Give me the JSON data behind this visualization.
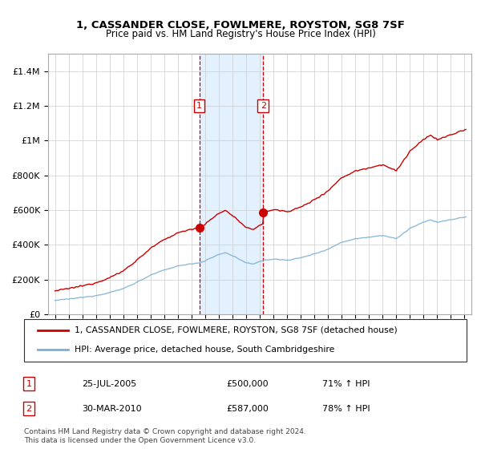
{
  "title": "1, CASSANDER CLOSE, FOWLMERE, ROYSTON, SG8 7SF",
  "subtitle": "Price paid vs. HM Land Registry's House Price Index (HPI)",
  "legend_line1": "1, CASSANDER CLOSE, FOWLMERE, ROYSTON, SG8 7SF (detached house)",
  "legend_line2": "HPI: Average price, detached house, South Cambridgeshire",
  "sale1_label": "1",
  "sale2_label": "2",
  "sale1_date": "25-JUL-2005",
  "sale1_price": 500000,
  "sale1_hpi_text": "71% ↑ HPI",
  "sale2_date": "30-MAR-2010",
  "sale2_price": 587000,
  "sale2_hpi_text": "78% ↑ HPI",
  "footnote_line1": "Contains HM Land Registry data © Crown copyright and database right 2024.",
  "footnote_line2": "This data is licensed under the Open Government Licence v3.0.",
  "red_color": "#cc0000",
  "blue_color": "#7bafd4",
  "shade_color": "#ddeeff",
  "ylim_min": 0,
  "ylim_max": 1500000,
  "sale1_x": 2005.57,
  "sale2_x": 2010.25,
  "xlim_min": 1994.5,
  "xlim_max": 2025.5,
  "hpi_anchors_t": [
    1995.0,
    1996.0,
    1997.0,
    1998.0,
    1999.0,
    2000.0,
    2001.0,
    2002.0,
    2003.0,
    2004.0,
    2005.0,
    2005.5,
    2006.0,
    2007.0,
    2007.5,
    2008.0,
    2008.5,
    2009.0,
    2009.5,
    2010.0,
    2010.25,
    2011.0,
    2012.0,
    2013.0,
    2014.0,
    2015.0,
    2016.0,
    2017.0,
    2018.0,
    2019.0,
    2020.0,
    2020.5,
    2021.0,
    2022.0,
    2022.5,
    2023.0,
    2024.0,
    2025.0
  ],
  "hpi_anchors_v": [
    80000,
    88000,
    97000,
    108000,
    125000,
    148000,
    185000,
    225000,
    255000,
    278000,
    292000,
    295000,
    308000,
    345000,
    355000,
    338000,
    318000,
    295000,
    290000,
    305000,
    310000,
    318000,
    312000,
    325000,
    348000,
    375000,
    415000,
    435000,
    445000,
    455000,
    435000,
    465000,
    495000,
    530000,
    545000,
    530000,
    545000,
    560000
  ]
}
